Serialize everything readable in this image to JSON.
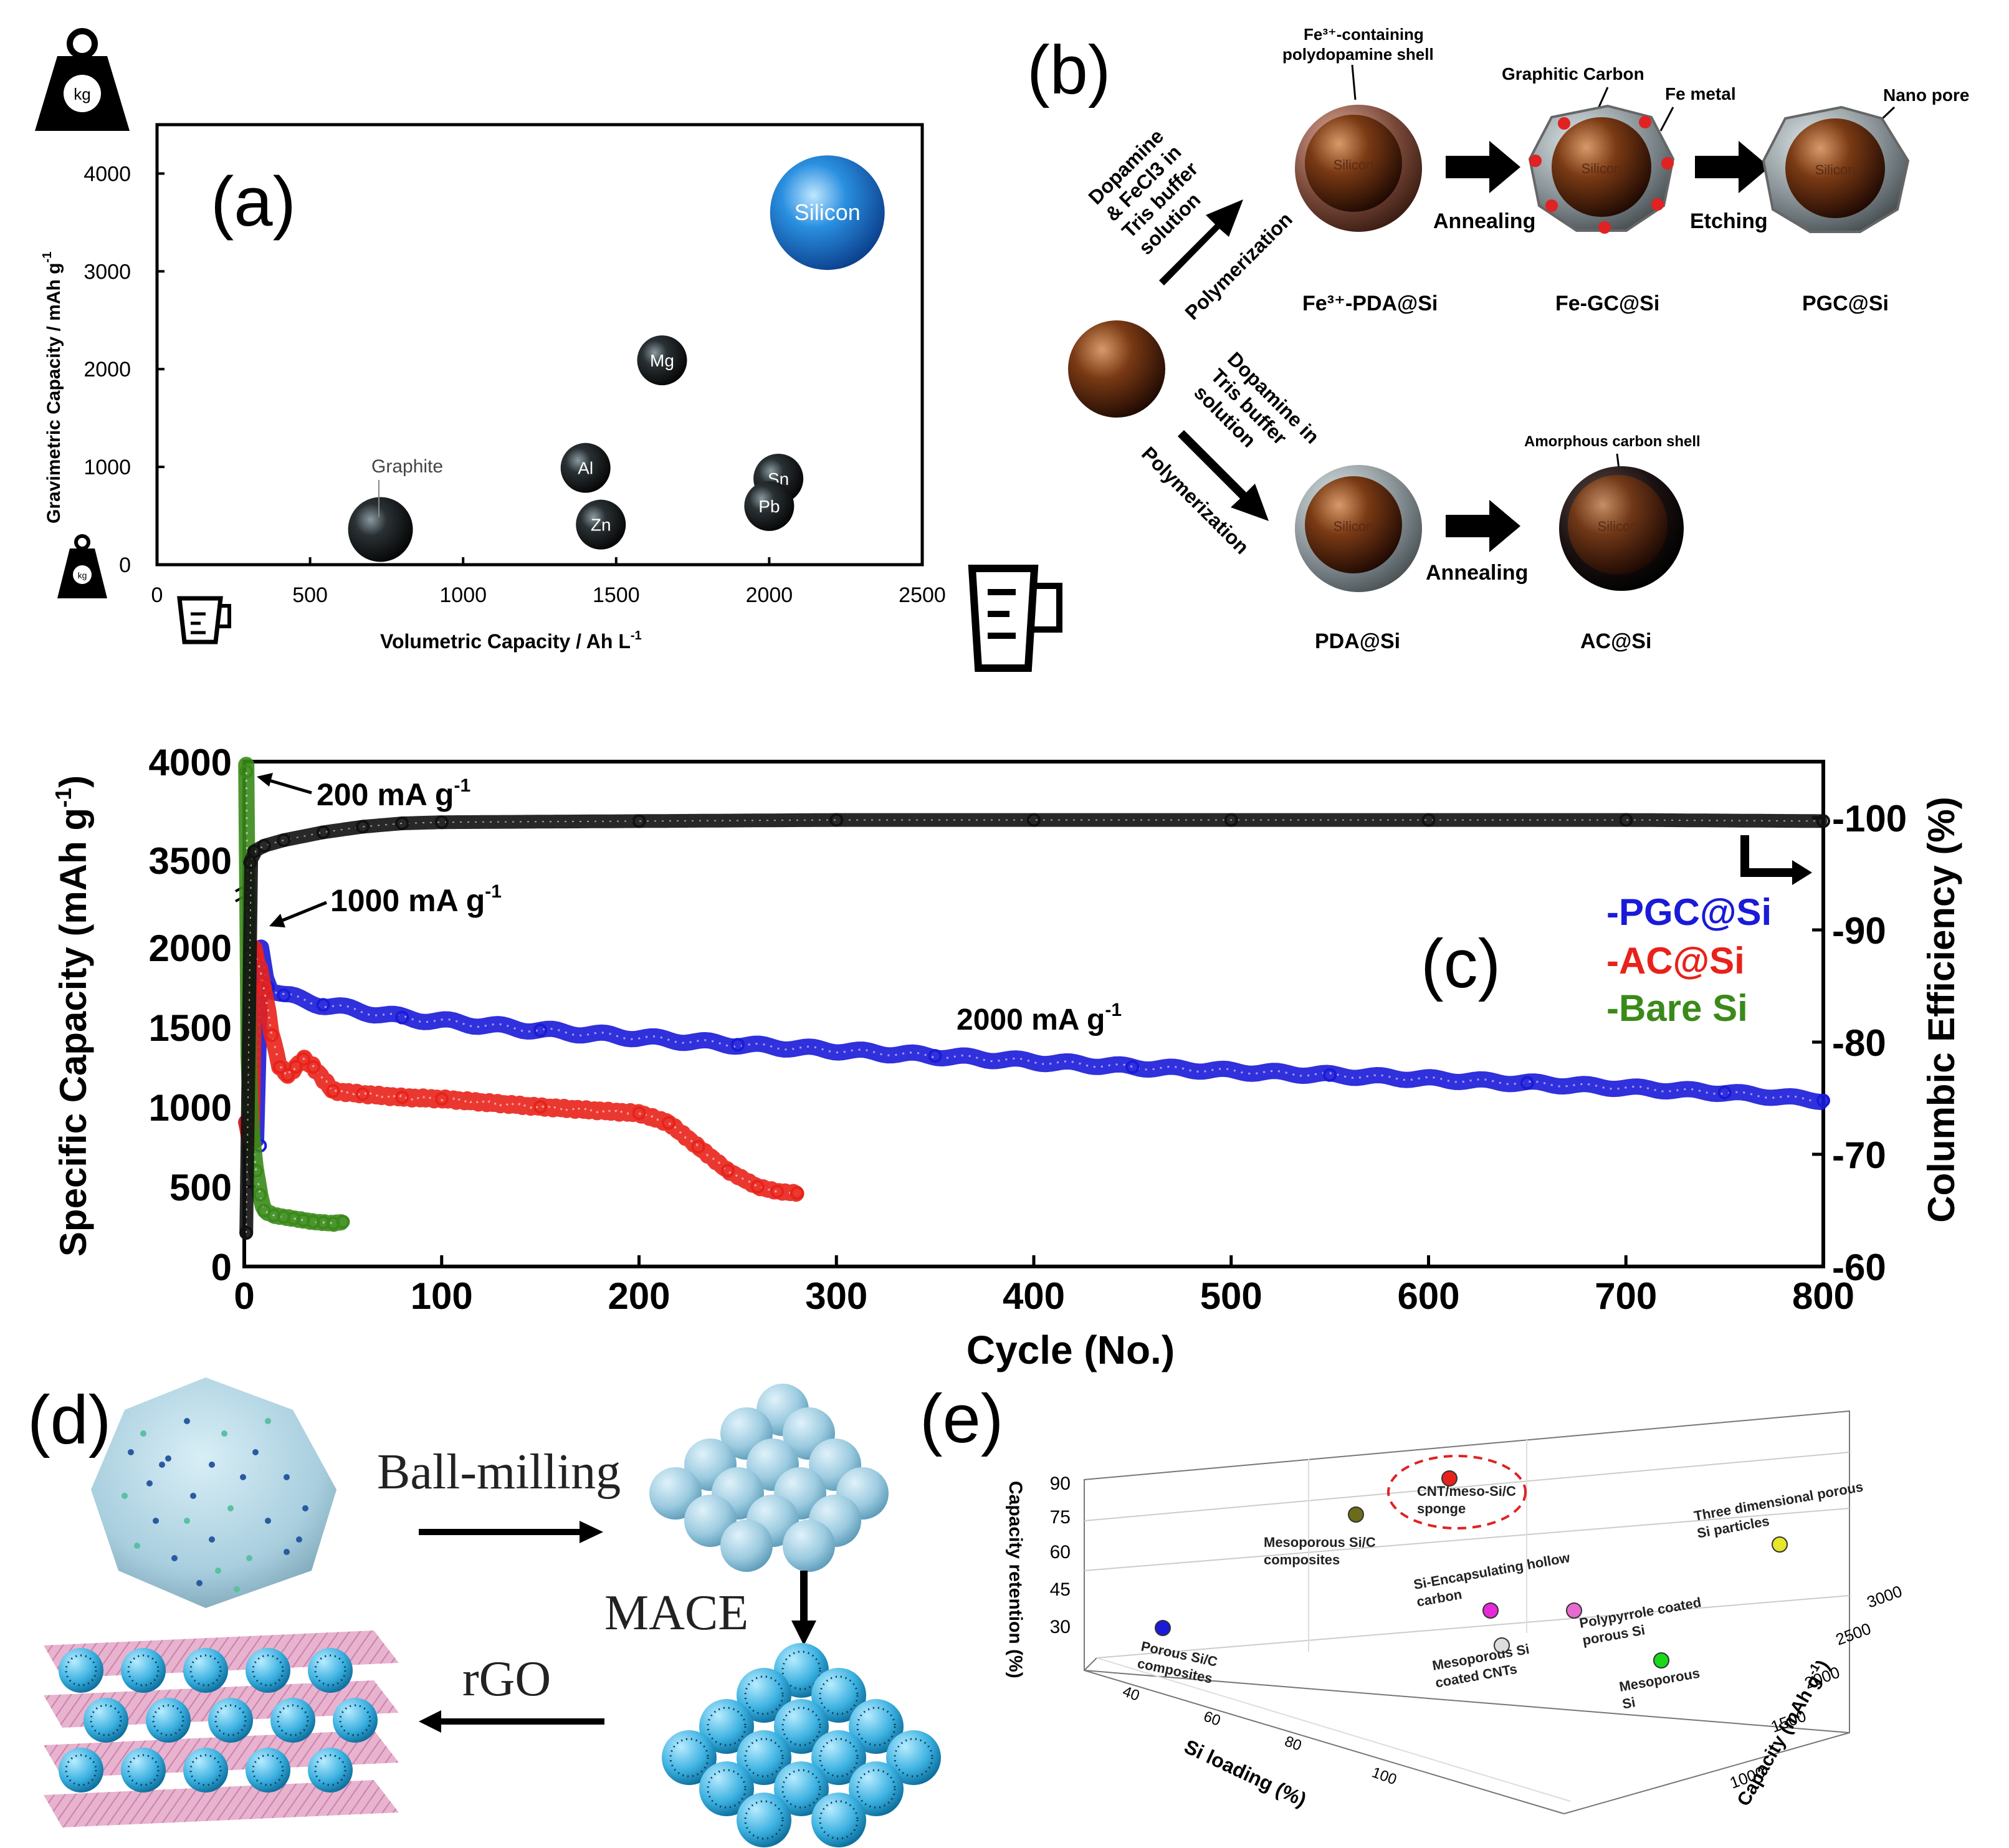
{
  "panel_a": {
    "label": "(a)",
    "xlabel": "Volumetric Capacity / Ah L",
    "xlabel_sup": "-1",
    "ylabel": "Gravimetric Capacity / mAh g",
    "ylabel_sup": "-1",
    "weight_icon_text": "kg",
    "graphite_label": "Graphite"
  },
  "panel_b": {
    "label": "(b)",
    "fe_shell_label": "Fe³⁺-containing polydopamine shell",
    "graphitic_carbon_label": "Graphitic Carbon",
    "fe_metal_label": "Fe metal",
    "nano_pore_label": "Nano pore",
    "amorphous_shell_label": "Amorphous carbon shell",
    "top_arrow_text": [
      "Dopamine",
      "& FeCl3 in",
      "Tris buffer",
      "solution"
    ],
    "bottom_arrow_text": [
      "Dopamine in",
      "Tris buffer",
      "solution"
    ],
    "polymerization": "Polymerization",
    "annealing": "Annealing",
    "etching": "Etching",
    "silicon": "Silicon",
    "products": {
      "fe_pda": "Fe³⁺-PDA@Si",
      "fe_gc": "Fe-GC@Si",
      "pgc": "PGC@Si",
      "pda": "PDA@Si",
      "ac": "AC@Si"
    }
  },
  "panel_c": {
    "label": "(c)",
    "annotations": {
      "rate_200": "200 mA g",
      "rate_1000": "1000 mA g",
      "rate_2000": "2000 mA g",
      "sup": "-1"
    },
    "xlabel": "Cycle (No.)",
    "ylabel": "Specific Capacity (mAh g",
    "ylabel_sup": "-1",
    "ylabel_end": ")",
    "y2label": "Columbic Efficiency (%)"
  },
  "panel_d": {
    "label": "(d)",
    "ball_milling": "Ball-milling",
    "mace": "MACE",
    "rgo": "rGO"
  },
  "panel_e": {
    "label": "(e)",
    "z_axis_label": "Capacity retention (%)",
    "x_axis_label": "Si loading (%)",
    "y_axis_label": "Capacity (mAh g",
    "y_axis_sup": "-1",
    "y_axis_end": ")",
    "z_ticks": [
      "90",
      "75",
      "60",
      "45",
      "30"
    ],
    "x_ticks": [
      "40",
      "60",
      "80",
      "100"
    ],
    "y_ticks": [
      "3000",
      "2500",
      "2000",
      "1500",
      "1000"
    ],
    "highlight": "CNT/meso-Si/C sponge",
    "points": [
      {
        "label": "CNT/meso-Si/C sponge",
        "color": "#e8221a"
      },
      {
        "label": "Mesoporous Si/C composites",
        "color": "#6b6b1a"
      },
      {
        "label": "Three dimensional porous Si particles",
        "color": "#e6e62a"
      },
      {
        "label": "Si-Encapsulating hollow carbon",
        "color": "#e62ad9"
      },
      {
        "label": "Polypyrrole coated porous Si",
        "color": "#e86ad0"
      },
      {
        "label": "Porous Si/C composites",
        "color": "#1a1ad8"
      },
      {
        "label": "Mesoporous Si coated CNTs",
        "color": "#dddddd"
      },
      {
        "label": "Mesoporous Si",
        "color": "#1ad81a"
      }
    ]
  },
  "chart_data": [
    {
      "type": "scatter",
      "panel": "(a)",
      "title": "",
      "xlabel": "Volumetric Capacity / Ah L-1",
      "ylabel": "Gravimetric Capacity / mAh g-1",
      "xlim": [
        0,
        2500
      ],
      "ylim": [
        0,
        4500
      ],
      "xticks": [
        0,
        500,
        1000,
        1500,
        2000,
        2500
      ],
      "yticks": [
        0,
        1000,
        2000,
        3000,
        4000
      ],
      "points": [
        {
          "label": "Graphite",
          "x": 730,
          "y": 360,
          "color": "#111111",
          "size": "medium"
        },
        {
          "label": "Al",
          "x": 1400,
          "y": 990,
          "color": "#222222",
          "size": "small"
        },
        {
          "label": "Zn",
          "x": 1450,
          "y": 410,
          "color": "#222222",
          "size": "small"
        },
        {
          "label": "Mg",
          "x": 1650,
          "y": 2090,
          "color": "#222222",
          "size": "small"
        },
        {
          "label": "Sn",
          "x": 2030,
          "y": 880,
          "color": "#222222",
          "size": "small"
        },
        {
          "label": "Pb",
          "x": 2000,
          "y": 600,
          "color": "#222222",
          "size": "small"
        },
        {
          "label": "Silicon",
          "x": 2190,
          "y": 3600,
          "color": "#1a7fd6",
          "size": "large"
        }
      ]
    },
    {
      "type": "line",
      "panel": "(c)",
      "title": "",
      "xlabel": "Cycle (No.)",
      "ylabel": "Specific Capacity (mAh g-1)",
      "y2label": "Columbic Efficiency (%)",
      "xlim": [
        0,
        800
      ],
      "ylim": [
        0,
        4000
      ],
      "y2lim": [
        60,
        105
      ],
      "xticks": [
        0,
        100,
        200,
        300,
        400,
        500,
        600,
        700,
        800
      ],
      "yticks": [
        0,
        500,
        1000,
        1500,
        2000,
        3500,
        4000
      ],
      "ytick_labels": [
        "0",
        "500",
        "1000",
        "1500",
        "2000",
        "3500",
        "4000"
      ],
      "y2ticks": [
        60,
        70,
        80,
        90,
        100
      ],
      "legend": [
        "-PGC@Si",
        "-AC@Si",
        "-Bare Si"
      ],
      "legend_colors": [
        "#1a1ad8",
        "#e8221a",
        "#3a8a1a"
      ],
      "series": [
        {
          "name": "-PGC@Si",
          "color": "#1a1ad8",
          "x": [
            1,
            3,
            5,
            8,
            12,
            20,
            40,
            80,
            150,
            250,
            350,
            450,
            550,
            650,
            750,
            800
          ],
          "values": [
            2150,
            2120,
            2100,
            2050,
            1750,
            1700,
            1640,
            1560,
            1480,
            1390,
            1320,
            1250,
            1200,
            1150,
            1090,
            1040
          ]
        },
        {
          "name": "-AC@Si",
          "color": "#e8221a",
          "x": [
            1,
            3,
            6,
            10,
            14,
            18,
            22,
            26,
            30,
            35,
            45,
            60,
            80,
            100,
            150,
            200,
            215,
            230,
            245,
            260,
            270,
            280
          ],
          "values": [
            2150,
            2100,
            1950,
            1750,
            1450,
            1250,
            1200,
            1250,
            1300,
            1250,
            1100,
            1080,
            1060,
            1050,
            1000,
            960,
            900,
            750,
            600,
            500,
            470,
            460
          ]
        },
        {
          "name": "-Bare Si",
          "color": "#3a8a1a",
          "x": [
            1,
            2,
            3,
            4,
            6,
            8,
            10,
            15,
            20,
            25,
            30,
            35,
            40,
            45,
            50
          ],
          "values": [
            3950,
            1400,
            1000,
            800,
            600,
            450,
            350,
            320,
            310,
            300,
            290,
            280,
            275,
            270,
            280
          ]
        },
        {
          "name": "Columbic Efficiency",
          "axis": "y2",
          "color": "#111111",
          "x": [
            1,
            3,
            5,
            10,
            20,
            40,
            60,
            80,
            100,
            200,
            300,
            400,
            500,
            600,
            700,
            800
          ],
          "values": [
            63,
            96,
            97,
            97.5,
            98,
            98.7,
            99.2,
            99.5,
            99.6,
            99.7,
            99.8,
            99.8,
            99.8,
            99.8,
            99.8,
            99.7
          ]
        }
      ]
    }
  ]
}
